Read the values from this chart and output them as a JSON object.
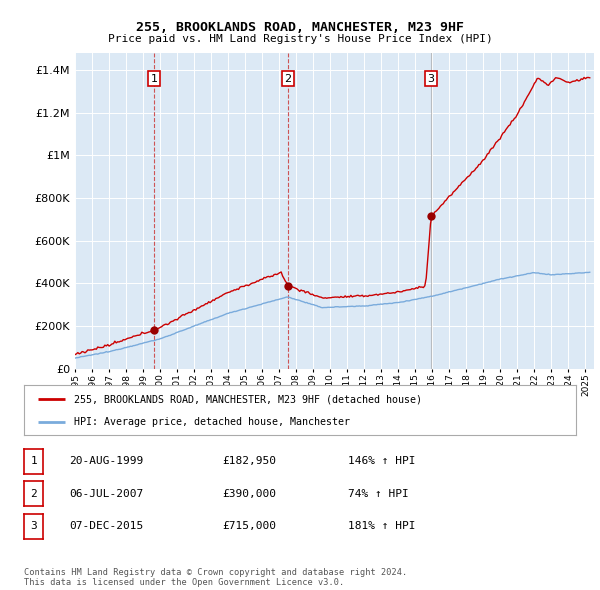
{
  "title1": "255, BROOKLANDS ROAD, MANCHESTER, M23 9HF",
  "title2": "Price paid vs. HM Land Registry's House Price Index (HPI)",
  "ytick_values": [
    0,
    200000,
    400000,
    600000,
    800000,
    1000000,
    1200000,
    1400000
  ],
  "ylim": [
    0,
    1480000
  ],
  "xlim_start": 1995.0,
  "xlim_end": 2025.5,
  "background_color": "#dce9f5",
  "grid_color": "#ffffff",
  "sale_dates": [
    1999.64,
    2007.51,
    2015.93
  ],
  "sale_prices": [
    182950,
    390000,
    715000
  ],
  "sale_labels": [
    "1",
    "2",
    "3"
  ],
  "vline_styles": [
    "red_dashed",
    "red_dashed",
    "gray_solid"
  ],
  "legend_line1": "255, BROOKLANDS ROAD, MANCHESTER, M23 9HF (detached house)",
  "legend_line2": "HPI: Average price, detached house, Manchester",
  "table_rows": [
    [
      "1",
      "20-AUG-1999",
      "£182,950",
      "146% ↑ HPI"
    ],
    [
      "2",
      "06-JUL-2007",
      "£390,000",
      "74% ↑ HPI"
    ],
    [
      "3",
      "07-DEC-2015",
      "£715,000",
      "181% ↑ HPI"
    ]
  ],
  "footer": "Contains HM Land Registry data © Crown copyright and database right 2024.\nThis data is licensed under the Open Government Licence v3.0.",
  "red_line_color": "#cc0000",
  "blue_line_color": "#7aabdc",
  "marker_color": "#990000"
}
